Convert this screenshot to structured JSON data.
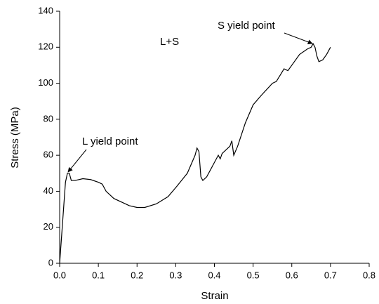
{
  "chart_data": {
    "type": "line",
    "x_label": "Strain",
    "y_label": "Stress (MPa)",
    "color": "#000000",
    "x": [
      0,
      0.005,
      0.01,
      0.015,
      0.02,
      0.025,
      0.03,
      0.04,
      0.06,
      0.08,
      0.1,
      0.11,
      0.12,
      0.14,
      0.16,
      0.18,
      0.2,
      0.22,
      0.25,
      0.28,
      0.3,
      0.33,
      0.35,
      0.355,
      0.36,
      0.365,
      0.37,
      0.38,
      0.39,
      0.4,
      0.41,
      0.415,
      0.42,
      0.44,
      0.445,
      0.45,
      0.46,
      0.48,
      0.5,
      0.52,
      0.55,
      0.56,
      0.58,
      0.59,
      0.6,
      0.62,
      0.64,
      0.65,
      0.655,
      0.66,
      0.665,
      0.67,
      0.68,
      0.69,
      0.7
    ],
    "values": [
      0,
      15,
      30,
      45,
      50,
      50,
      46,
      46,
      47,
      46.5,
      45,
      44,
      40,
      36,
      34,
      32,
      31,
      31,
      33,
      37,
      42,
      50,
      60,
      64,
      62,
      48,
      46,
      48,
      52,
      56,
      60,
      58,
      61,
      65,
      68,
      60,
      65,
      78,
      88,
      93,
      100,
      101,
      108,
      107,
      110,
      116,
      119,
      120,
      122,
      120,
      115,
      112,
      113,
      116,
      120
    ],
    "xlim": [
      0,
      0.8
    ],
    "xticks": [
      {
        "value": 0,
        "label": "0.0"
      },
      0.1,
      0.2,
      0.3,
      0.4,
      0.5,
      0.6,
      0.7,
      0.8
    ],
    "ylim": [
      0,
      140
    ],
    "yticks": [
      0,
      20,
      40,
      60,
      80,
      100,
      120,
      140
    ],
    "annotations": [
      "L+S",
      "S yield point",
      "L yield point"
    ]
  }
}
